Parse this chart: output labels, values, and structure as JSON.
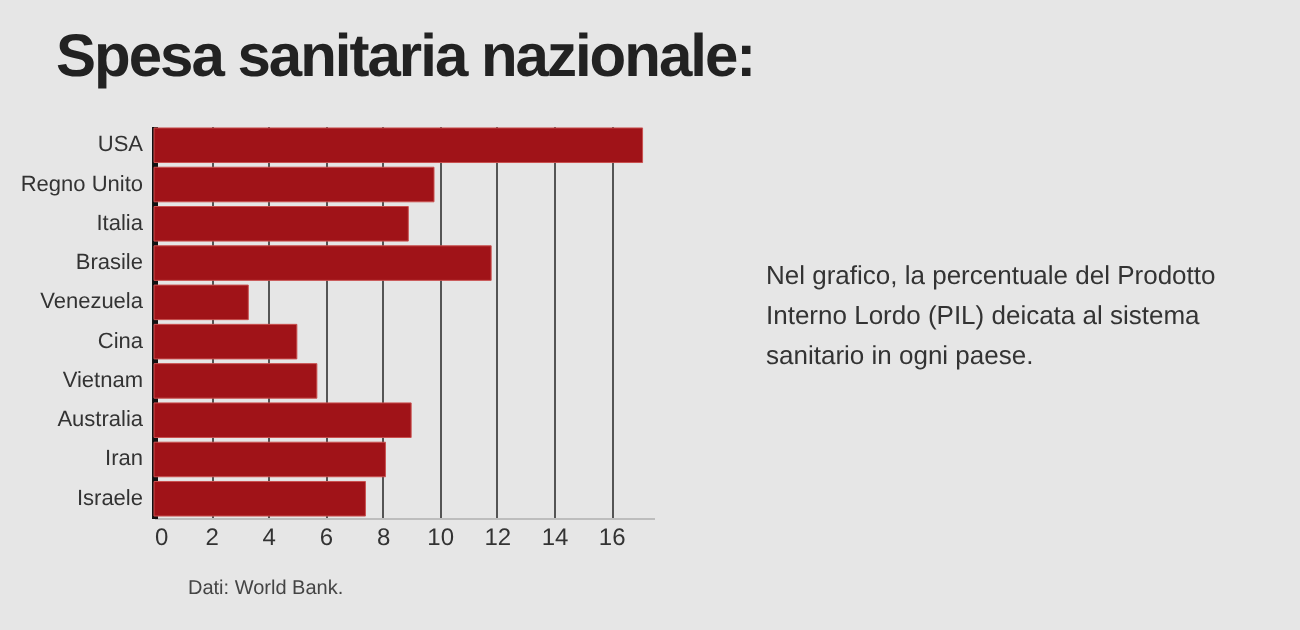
{
  "chart_data": {
    "type": "bar",
    "orientation": "horizontal",
    "title": "Spesa sanitaria nazionale:",
    "categories": [
      "USA",
      "Regno Unito",
      "Italia",
      "Brasile",
      "Venezuela",
      "Cina",
      "Vietnam",
      "Australia",
      "Iran",
      "Israele"
    ],
    "values": [
      17.1,
      9.8,
      8.9,
      11.8,
      3.3,
      5.0,
      5.7,
      9.0,
      8.1,
      7.4
    ],
    "color": "#a01318",
    "xlim": [
      0,
      17.5
    ],
    "xticks": [
      0,
      2,
      4,
      6,
      8,
      10,
      12,
      14,
      16
    ],
    "grid": "x",
    "annotations": [
      "Nel grafico, la percentuale del Prodotto Interno Lordo (PIL) deicata al sistema sanitario in ogni paese.",
      "Dati: World Bank."
    ]
  }
}
